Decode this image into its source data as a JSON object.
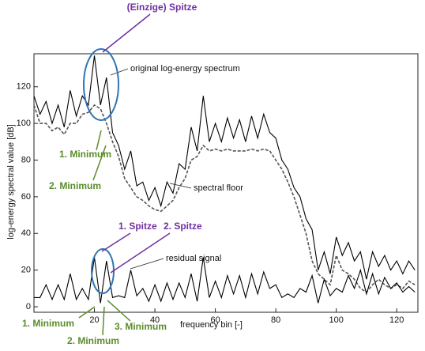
{
  "chart_data": {
    "type": "line",
    "y_label": "log-energy spectral value [dB]",
    "x_label": "frequency bin [-]",
    "x": [
      0,
      2,
      4,
      6,
      8,
      10,
      12,
      14,
      16,
      18,
      20,
      22,
      24,
      26,
      28,
      30,
      32,
      34,
      36,
      38,
      40,
      42,
      44,
      46,
      48,
      50,
      52,
      54,
      56,
      58,
      60,
      62,
      64,
      66,
      68,
      70,
      72,
      74,
      76,
      78,
      80,
      82,
      84,
      86,
      88,
      90,
      92,
      94,
      96,
      98,
      100,
      102,
      104,
      106,
      108,
      110,
      112,
      114,
      116,
      118,
      120,
      122,
      124,
      126
    ],
    "series": [
      {
        "name": "original log-energy spectrum",
        "color": "#000000",
        "values": [
          115,
          105,
          112,
          100,
          110,
          98,
          118,
          104,
          115,
          110,
          137,
          110,
          125,
          95,
          88,
          75,
          85,
          66,
          68,
          58,
          65,
          55,
          68,
          62,
          78,
          75,
          98,
          85,
          115,
          90,
          100,
          90,
          103,
          92,
          102,
          90,
          104,
          92,
          105,
          95,
          92,
          80,
          75,
          65,
          60,
          48,
          42,
          20,
          30,
          18,
          38,
          28,
          35,
          25,
          30,
          15,
          30,
          22,
          28,
          20,
          25,
          18,
          25,
          20
        ]
      },
      {
        "name": "spectral floor",
        "color": "#555555",
        "values": [
          110,
          100,
          100,
          96,
          98,
          94,
          100,
          100,
          105,
          106,
          110,
          108,
          100,
          90,
          82,
          70,
          65,
          60,
          58,
          55,
          53,
          52,
          55,
          58,
          65,
          70,
          80,
          82,
          88,
          85,
          86,
          85,
          86,
          85,
          85,
          85,
          86,
          85,
          86,
          85,
          80,
          75,
          68,
          60,
          50,
          40,
          25,
          18,
          15,
          12,
          28,
          20,
          18,
          15,
          10,
          8,
          12,
          15,
          12,
          10,
          12,
          10,
          14,
          12
        ]
      },
      {
        "name": "residual signal",
        "color": "#000000",
        "values": [
          5,
          5,
          12,
          4,
          12,
          4,
          18,
          4,
          10,
          4,
          27,
          2,
          25,
          5,
          6,
          5,
          20,
          6,
          10,
          3,
          12,
          3,
          13,
          4,
          13,
          5,
          18,
          3,
          27,
          5,
          14,
          5,
          17,
          7,
          17,
          5,
          18,
          7,
          19,
          10,
          12,
          5,
          7,
          5,
          10,
          8,
          17,
          2,
          15,
          6,
          10,
          8,
          17,
          10,
          20,
          7,
          18,
          7,
          16,
          10,
          13,
          8,
          11,
          8
        ]
      }
    ],
    "xlim": [
      0,
      127
    ],
    "ylim": [
      -3,
      138
    ],
    "xticks": [
      20,
      40,
      60,
      80,
      100,
      120
    ],
    "yticks": [
      0,
      20,
      40,
      60,
      80,
      100,
      120
    ],
    "annotations": [
      {
        "text": "(Einzige) Spitze",
        "color": "#7030a0"
      },
      {
        "text": "1. Minimum",
        "color": "#5b8c2a"
      },
      {
        "text": "2. Minimum",
        "color": "#5b8c2a"
      },
      {
        "text": "1. Spitze",
        "color": "#7030a0"
      },
      {
        "text": "2. Spitze",
        "color": "#7030a0"
      },
      {
        "text": "1. Minimum",
        "color": "#5b8c2a"
      },
      {
        "text": "2. Minimum",
        "color": "#5b8c2a"
      },
      {
        "text": "3. Minimum",
        "color": "#5b8c2a"
      }
    ]
  }
}
